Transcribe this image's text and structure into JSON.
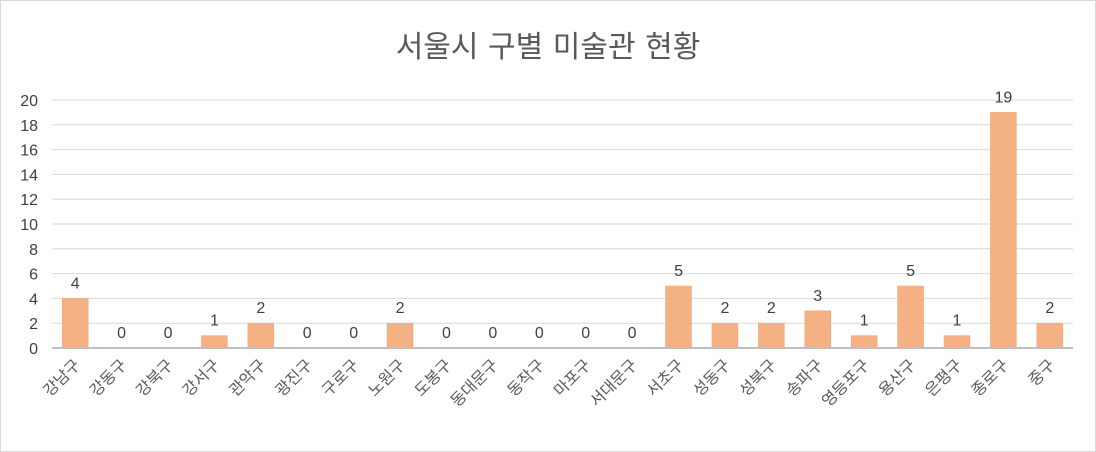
{
  "chart_data": {
    "type": "bar",
    "title": "서울시 구별 미술관 현황",
    "categories": [
      "강남구",
      "강동구",
      "강북구",
      "강서구",
      "관악구",
      "광진구",
      "구로구",
      "노원구",
      "도봉구",
      "동대문구",
      "동작구",
      "마포구",
      "서대문구",
      "서초구",
      "성동구",
      "성북구",
      "송파구",
      "영등포구",
      "용산구",
      "은평구",
      "종로구",
      "중구"
    ],
    "values": [
      4,
      0,
      0,
      1,
      2,
      0,
      0,
      2,
      0,
      0,
      0,
      0,
      0,
      5,
      2,
      2,
      3,
      1,
      5,
      1,
      19,
      2
    ],
    "ylim": [
      0,
      20
    ],
    "yticks": [
      0,
      2,
      4,
      6,
      8,
      10,
      12,
      14,
      16,
      18,
      20
    ],
    "grid": true,
    "legend": "none",
    "bar_color": "#F4B183",
    "bar_stroke": "#F5A66B",
    "gridline_color": "#d9d9d9",
    "axis_color": "#bfbfbf"
  }
}
